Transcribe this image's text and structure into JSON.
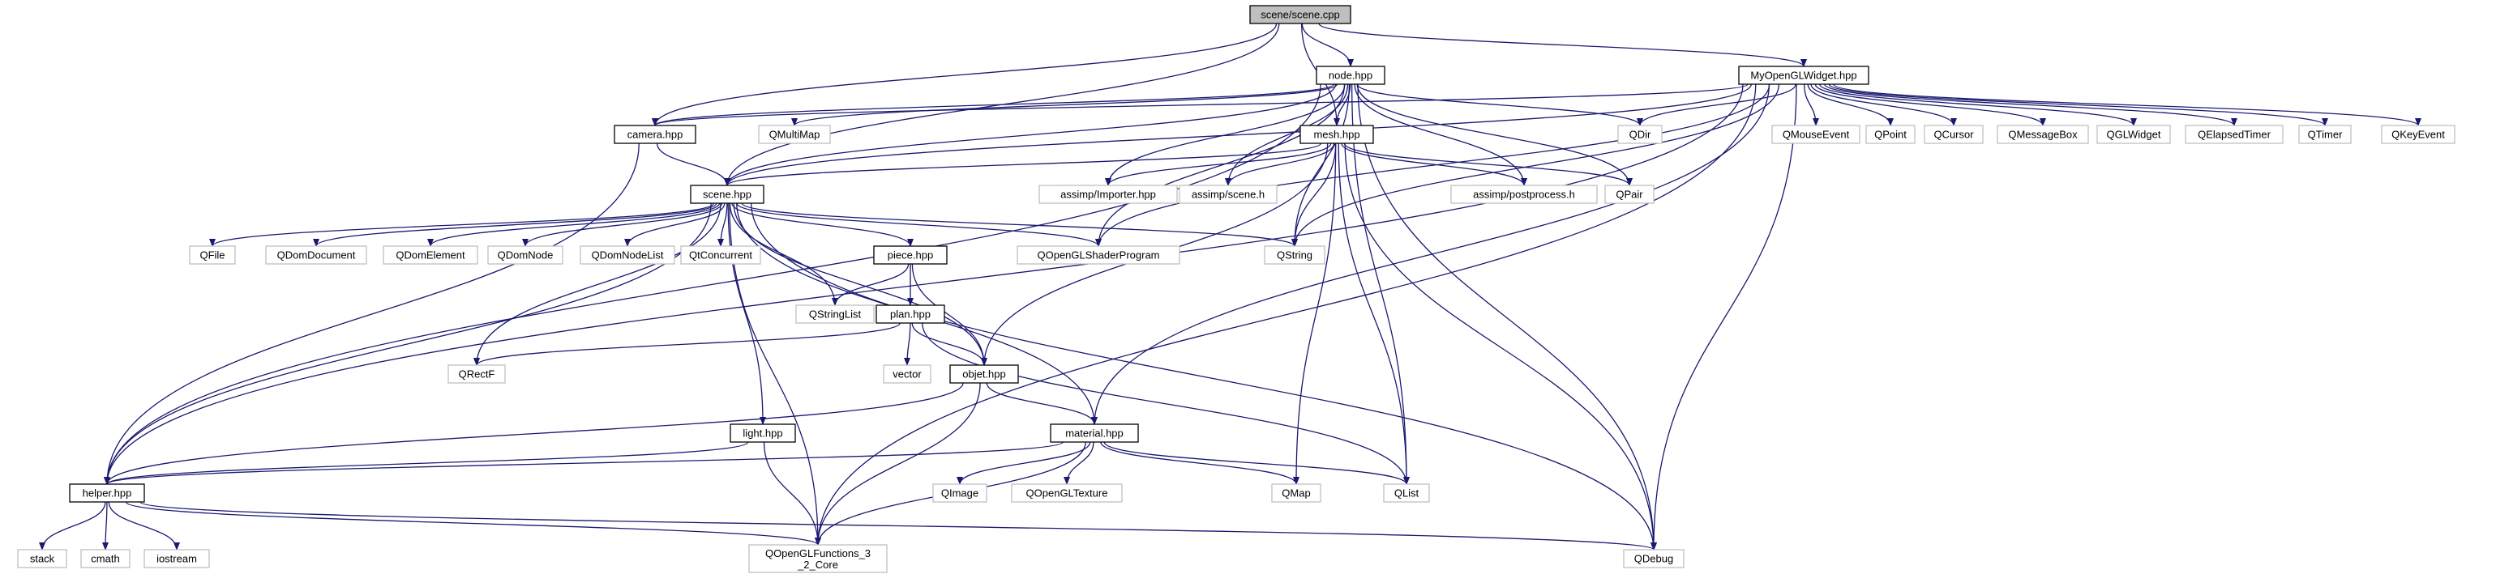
{
  "nodes": [
    {
      "id": "scene_cpp",
      "label": "scene/scene.cpp",
      "kind": "root"
    },
    {
      "id": "node_hpp",
      "label": "node.hpp",
      "kind": "internal"
    },
    {
      "id": "mywidget_hpp",
      "label": "MyOpenGLWidget.hpp",
      "kind": "internal"
    },
    {
      "id": "camera_hpp",
      "label": "camera.hpp",
      "kind": "internal"
    },
    {
      "id": "mesh_hpp",
      "label": "mesh.hpp",
      "kind": "internal"
    },
    {
      "id": "scene_hpp",
      "label": "scene.hpp",
      "kind": "internal"
    },
    {
      "id": "piece_hpp",
      "label": "piece.hpp",
      "kind": "internal"
    },
    {
      "id": "plan_hpp",
      "label": "plan.hpp",
      "kind": "internal"
    },
    {
      "id": "objet_hpp",
      "label": "objet.hpp",
      "kind": "internal"
    },
    {
      "id": "light_hpp",
      "label": "light.hpp",
      "kind": "internal"
    },
    {
      "id": "material_hpp",
      "label": "material.hpp",
      "kind": "internal"
    },
    {
      "id": "helper_hpp",
      "label": "helper.hpp",
      "kind": "internal"
    },
    {
      "id": "QMultiMap",
      "label": "QMultiMap",
      "kind": "external"
    },
    {
      "id": "QDir",
      "label": "QDir",
      "kind": "external"
    },
    {
      "id": "QMouseEvent",
      "label": "QMouseEvent",
      "kind": "external"
    },
    {
      "id": "QPoint",
      "label": "QPoint",
      "kind": "external"
    },
    {
      "id": "QCursor",
      "label": "QCursor",
      "kind": "external"
    },
    {
      "id": "QMessageBox",
      "label": "QMessageBox",
      "kind": "external"
    },
    {
      "id": "QGLWidget",
      "label": "QGLWidget",
      "kind": "external"
    },
    {
      "id": "QElapsedTimer",
      "label": "QElapsedTimer",
      "kind": "external"
    },
    {
      "id": "QTimer",
      "label": "QTimer",
      "kind": "external"
    },
    {
      "id": "QKeyEvent",
      "label": "QKeyEvent",
      "kind": "external"
    },
    {
      "id": "assimp_importer",
      "label": "assimp/Importer.hpp",
      "kind": "external"
    },
    {
      "id": "assimp_scene",
      "label": "assimp/scene.h",
      "kind": "external"
    },
    {
      "id": "assimp_post",
      "label": "assimp/postprocess.h",
      "kind": "external"
    },
    {
      "id": "QPair",
      "label": "QPair",
      "kind": "external"
    },
    {
      "id": "QFile",
      "label": "QFile",
      "kind": "external"
    },
    {
      "id": "QDomDocument",
      "label": "QDomDocument",
      "kind": "external"
    },
    {
      "id": "QDomElement",
      "label": "QDomElement",
      "kind": "external"
    },
    {
      "id": "QDomNode",
      "label": "QDomNode",
      "kind": "external"
    },
    {
      "id": "QDomNodeList",
      "label": "QDomNodeList",
      "kind": "external"
    },
    {
      "id": "QtConcurrent",
      "label": "QtConcurrent",
      "kind": "external"
    },
    {
      "id": "QOpenGLShaderProgram",
      "label": "QOpenGLShaderProgram",
      "kind": "external"
    },
    {
      "id": "QString",
      "label": "QString",
      "kind": "external"
    },
    {
      "id": "QStringList",
      "label": "QStringList",
      "kind": "external"
    },
    {
      "id": "QRectF",
      "label": "QRectF",
      "kind": "external"
    },
    {
      "id": "vector",
      "label": "vector",
      "kind": "external"
    },
    {
      "id": "QImage",
      "label": "QImage",
      "kind": "external"
    },
    {
      "id": "QOpenGLTexture",
      "label": "QOpenGLTexture",
      "kind": "external"
    },
    {
      "id": "QMap",
      "label": "QMap",
      "kind": "external"
    },
    {
      "id": "QList",
      "label": "QList",
      "kind": "external"
    },
    {
      "id": "stack",
      "label": "stack",
      "kind": "external"
    },
    {
      "id": "cmath",
      "label": "cmath",
      "kind": "external"
    },
    {
      "id": "iostream",
      "label": "iostream",
      "kind": "external"
    },
    {
      "id": "QOpenGLFunctions",
      "label": [
        "QOpenGLFunctions_3",
        "_2_Core"
      ],
      "kind": "external"
    },
    {
      "id": "QDebug",
      "label": "QDebug",
      "kind": "external"
    }
  ],
  "edges": [
    [
      "scene_cpp",
      "node_hpp"
    ],
    [
      "scene_cpp",
      "mywidget_hpp"
    ],
    [
      "scene_cpp",
      "camera_hpp"
    ],
    [
      "scene_cpp",
      "mesh_hpp"
    ],
    [
      "scene_cpp",
      "scene_hpp"
    ],
    [
      "node_hpp",
      "mesh_hpp"
    ],
    [
      "node_hpp",
      "camera_hpp"
    ],
    [
      "node_hpp",
      "scene_hpp"
    ],
    [
      "node_hpp",
      "helper_hpp"
    ],
    [
      "node_hpp",
      "QMultiMap"
    ],
    [
      "node_hpp",
      "QDir"
    ],
    [
      "node_hpp",
      "assimp_importer"
    ],
    [
      "node_hpp",
      "assimp_scene"
    ],
    [
      "node_hpp",
      "assimp_post"
    ],
    [
      "node_hpp",
      "QPair"
    ],
    [
      "node_hpp",
      "QOpenGLShaderProgram"
    ],
    [
      "node_hpp",
      "QList"
    ],
    [
      "node_hpp",
      "QDebug"
    ],
    [
      "node_hpp",
      "QString"
    ],
    [
      "mywidget_hpp",
      "camera_hpp"
    ],
    [
      "mywidget_hpp",
      "scene_hpp"
    ],
    [
      "mywidget_hpp",
      "helper_hpp"
    ],
    [
      "mywidget_hpp",
      "QDir"
    ],
    [
      "mywidget_hpp",
      "QMouseEvent"
    ],
    [
      "mywidget_hpp",
      "QPoint"
    ],
    [
      "mywidget_hpp",
      "QCursor"
    ],
    [
      "mywidget_hpp",
      "QMessageBox"
    ],
    [
      "mywidget_hpp",
      "QGLWidget"
    ],
    [
      "mywidget_hpp",
      "QElapsedTimer"
    ],
    [
      "mywidget_hpp",
      "QTimer"
    ],
    [
      "mywidget_hpp",
      "QKeyEvent"
    ],
    [
      "mywidget_hpp",
      "QDebug"
    ],
    [
      "mywidget_hpp",
      "material_hpp"
    ],
    [
      "mywidget_hpp",
      "QOpenGLFunctions"
    ],
    [
      "mywidget_hpp",
      "QOpenGLShaderProgram"
    ],
    [
      "mywidget_hpp",
      "QString"
    ],
    [
      "camera_hpp",
      "scene_hpp"
    ],
    [
      "camera_hpp",
      "helper_hpp"
    ],
    [
      "mesh_hpp",
      "scene_hpp"
    ],
    [
      "mesh_hpp",
      "assimp_importer"
    ],
    [
      "mesh_hpp",
      "assimp_scene"
    ],
    [
      "mesh_hpp",
      "assimp_post"
    ],
    [
      "mesh_hpp",
      "QPair"
    ],
    [
      "mesh_hpp",
      "QString"
    ],
    [
      "mesh_hpp",
      "objet_hpp"
    ],
    [
      "mesh_hpp",
      "QMap"
    ],
    [
      "mesh_hpp",
      "QList"
    ],
    [
      "mesh_hpp",
      "QDebug"
    ],
    [
      "scene_hpp",
      "QFile"
    ],
    [
      "scene_hpp",
      "QDomDocument"
    ],
    [
      "scene_hpp",
      "QDomElement"
    ],
    [
      "scene_hpp",
      "QDomNode"
    ],
    [
      "scene_hpp",
      "QDomNodeList"
    ],
    [
      "scene_hpp",
      "QtConcurrent"
    ],
    [
      "scene_hpp",
      "piece_hpp"
    ],
    [
      "scene_hpp",
      "QOpenGLShaderProgram"
    ],
    [
      "scene_hpp",
      "QString"
    ],
    [
      "scene_hpp",
      "QStringList"
    ],
    [
      "scene_hpp",
      "QRectF"
    ],
    [
      "scene_hpp",
      "helper_hpp"
    ],
    [
      "scene_hpp",
      "light_hpp"
    ],
    [
      "scene_hpp",
      "objet_hpp"
    ],
    [
      "scene_hpp",
      "material_hpp"
    ],
    [
      "scene_hpp",
      "QDebug"
    ],
    [
      "scene_hpp",
      "QOpenGLFunctions"
    ],
    [
      "piece_hpp",
      "QStringList"
    ],
    [
      "piece_hpp",
      "plan_hpp"
    ],
    [
      "piece_hpp",
      "objet_hpp"
    ],
    [
      "plan_hpp",
      "QRectF"
    ],
    [
      "plan_hpp",
      "vector"
    ],
    [
      "plan_hpp",
      "objet_hpp"
    ],
    [
      "plan_hpp",
      "QList"
    ],
    [
      "objet_hpp",
      "material_hpp"
    ],
    [
      "objet_hpp",
      "helper_hpp"
    ],
    [
      "objet_hpp",
      "QOpenGLFunctions"
    ],
    [
      "light_hpp",
      "helper_hpp"
    ],
    [
      "light_hpp",
      "QOpenGLFunctions"
    ],
    [
      "material_hpp",
      "helper_hpp"
    ],
    [
      "material_hpp",
      "QImage"
    ],
    [
      "material_hpp",
      "QOpenGLTexture"
    ],
    [
      "material_hpp",
      "QMap"
    ],
    [
      "material_hpp",
      "QList"
    ],
    [
      "material_hpp",
      "QOpenGLFunctions"
    ],
    [
      "helper_hpp",
      "stack"
    ],
    [
      "helper_hpp",
      "cmath"
    ],
    [
      "helper_hpp",
      "iostream"
    ],
    [
      "helper_hpp",
      "QOpenGLFunctions"
    ],
    [
      "helper_hpp",
      "QDebug"
    ]
  ]
}
